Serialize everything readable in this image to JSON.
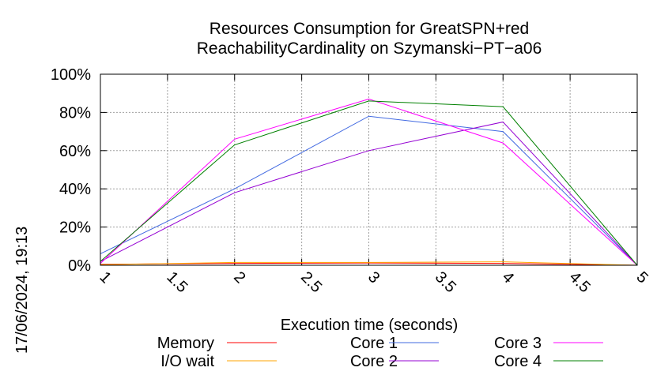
{
  "side_label": "17/06/2024, 19:13",
  "chart_data": {
    "type": "line",
    "title": [
      "Resources Consumption for GreatSPN+red",
      "ReachabilityCardinality on Szymanski−PT−a06"
    ],
    "xlabel": "Execution time (seconds)",
    "ylabel": "",
    "xlim": [
      1,
      5
    ],
    "ylim": [
      0,
      100
    ],
    "grid": true,
    "x_ticks": [
      1,
      1.5,
      2,
      2.5,
      3,
      3.5,
      4,
      4.5,
      5
    ],
    "x_tick_labels": [
      "1",
      "1.5",
      "2",
      "2.5",
      "3",
      "3.5",
      "4",
      "4.5",
      "5"
    ],
    "y_ticks": [
      0,
      20,
      40,
      60,
      80,
      100
    ],
    "y_tick_labels": [
      "0%",
      "20%",
      "40%",
      "60%",
      "80%",
      "100%"
    ],
    "x": [
      1,
      2,
      3,
      4,
      5
    ],
    "series": [
      {
        "name": "Memory",
        "color": "#ff0000",
        "values": [
          0.5,
          1,
          1.2,
          1,
          0
        ]
      },
      {
        "name": "I/O wait",
        "color": "#ffa500",
        "values": [
          0.3,
          1.5,
          1.5,
          1.8,
          0
        ]
      },
      {
        "name": "Core 1",
        "color": "#4169e1",
        "values": [
          6,
          40,
          78,
          70,
          0
        ]
      },
      {
        "name": "Core 2",
        "color": "#9400d3",
        "values": [
          2,
          38,
          60,
          75,
          0
        ]
      },
      {
        "name": "Core 3",
        "color": "#ff00ff",
        "values": [
          1,
          66,
          87,
          64,
          0
        ]
      },
      {
        "name": "Core 4",
        "color": "#008000",
        "values": [
          2,
          63,
          86,
          83,
          0
        ]
      }
    ],
    "legend_position": "bottom"
  }
}
